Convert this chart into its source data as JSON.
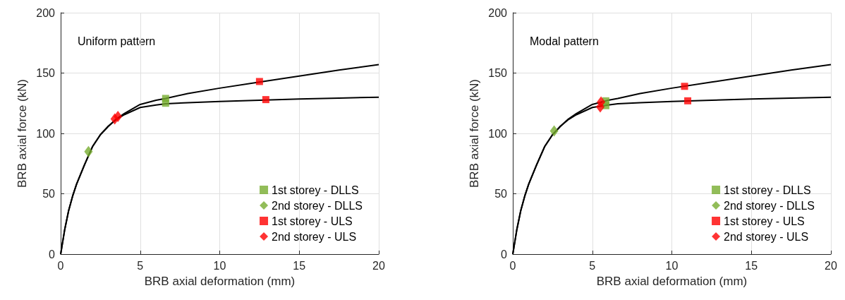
{
  "chart_data": [
    {
      "type": "line",
      "annotations": [
        "Uniform pattern"
      ],
      "xlabel": "BRB axial deformation (mm)",
      "ylabel": "BRB axial force (kN)",
      "xlim": [
        0,
        20
      ],
      "xticks": [
        0,
        5,
        10,
        15,
        20
      ],
      "ylim": [
        0,
        200
      ],
      "yticks": [
        0,
        50,
        100,
        150,
        200
      ],
      "grid": true,
      "legend": "bottom right",
      "marker": "none",
      "line_style": "solid",
      "series": [
        {
          "color": "#000000",
          "x": [
            0,
            0.25,
            0.5,
            0.75,
            1,
            1.5,
            2,
            2.5,
            3,
            3.5,
            4,
            5,
            6,
            6.6,
            8,
            10,
            12.5,
            15,
            17.5,
            20
          ],
          "values": [
            0,
            20,
            36,
            48,
            58,
            74,
            89,
            99,
            106,
            112,
            116.5,
            124,
            127.5,
            129,
            133,
            137.5,
            142.5,
            147.5,
            152.5,
            157
          ]
        },
        {
          "color": "#000000",
          "x": [
            0,
            0.25,
            0.5,
            0.75,
            1,
            1.5,
            2,
            2.5,
            3,
            3.5,
            4,
            5,
            6,
            6.6,
            8,
            10,
            12.5,
            15,
            17.5,
            20
          ],
          "values": [
            0,
            20,
            36,
            48,
            58,
            74,
            89,
            99,
            106,
            111.5,
            115.5,
            121.5,
            123.5,
            124.5,
            125.5,
            126.5,
            127.5,
            128.5,
            129.3,
            130
          ]
        },
        {
          "type": "scatter",
          "name": "1st storey - DLLS",
          "color": "#77ac30",
          "marker": "square",
          "x": [
            6.6,
            6.6
          ],
          "values": [
            129,
            125
          ]
        },
        {
          "type": "scatter",
          "name": "2nd storey - DLLS",
          "color": "#77ac30",
          "marker": "diamond",
          "x": [
            1.75
          ],
          "values": [
            85
          ]
        },
        {
          "type": "scatter",
          "name": "1st storey - ULS",
          "color": "#ff0000",
          "marker": "square",
          "x": [
            12.5,
            12.9
          ],
          "values": [
            143,
            128
          ]
        },
        {
          "type": "scatter",
          "name": "2nd storey - ULS",
          "color": "#ff0000",
          "marker": "diamond",
          "x": [
            3.4,
            3.6
          ],
          "values": [
            112,
            114
          ]
        }
      ]
    },
    {
      "type": "line",
      "annotations": [
        "Modal pattern"
      ],
      "xlabel": "BRB axial deformation (mm)",
      "ylabel": "BRB axial force (kN)",
      "xlim": [
        0,
        20
      ],
      "xticks": [
        0,
        5,
        10,
        15,
        20
      ],
      "ylim": [
        0,
        200
      ],
      "yticks": [
        0,
        50,
        100,
        150,
        200
      ],
      "grid": true,
      "legend": "bottom right",
      "marker": "none",
      "line_style": "solid",
      "series": [
        {
          "color": "#000000",
          "x": [
            0,
            0.25,
            0.5,
            0.75,
            1,
            1.5,
            2,
            2.5,
            3,
            3.5,
            4,
            5,
            6,
            6.6,
            8,
            10,
            12.5,
            15,
            17.5,
            20
          ],
          "values": [
            0,
            20,
            36,
            48,
            58,
            74,
            89,
            99,
            106,
            112,
            116.5,
            124,
            127.5,
            129,
            133,
            137.5,
            142.5,
            147.5,
            152.5,
            157
          ]
        },
        {
          "color": "#000000",
          "x": [
            0,
            0.25,
            0.5,
            0.75,
            1,
            1.5,
            2,
            2.5,
            3,
            3.5,
            4,
            5,
            6,
            6.6,
            8,
            10,
            12.5,
            15,
            17.5,
            20
          ],
          "values": [
            0,
            20,
            36,
            48,
            58,
            74,
            89,
            99,
            106,
            111.5,
            115.5,
            121.5,
            123.5,
            124.5,
            125.5,
            126.5,
            127.5,
            128.5,
            129.3,
            130
          ]
        },
        {
          "type": "scatter",
          "name": "1st storey - DLLS",
          "color": "#77ac30",
          "marker": "square",
          "x": [
            5.85,
            5.85
          ],
          "values": [
            127,
            123
          ]
        },
        {
          "type": "scatter",
          "name": "2nd storey - DLLS",
          "color": "#77ac30",
          "marker": "diamond",
          "x": [
            2.6
          ],
          "values": [
            102
          ]
        },
        {
          "type": "scatter",
          "name": "1st storey - ULS",
          "color": "#ff0000",
          "marker": "square",
          "x": [
            10.8,
            11
          ],
          "values": [
            139,
            127
          ]
        },
        {
          "type": "scatter",
          "name": "2nd storey - ULS",
          "color": "#ff0000",
          "marker": "diamond",
          "x": [
            5.5,
            5.55
          ],
          "values": [
            122,
            126
          ]
        }
      ]
    }
  ]
}
